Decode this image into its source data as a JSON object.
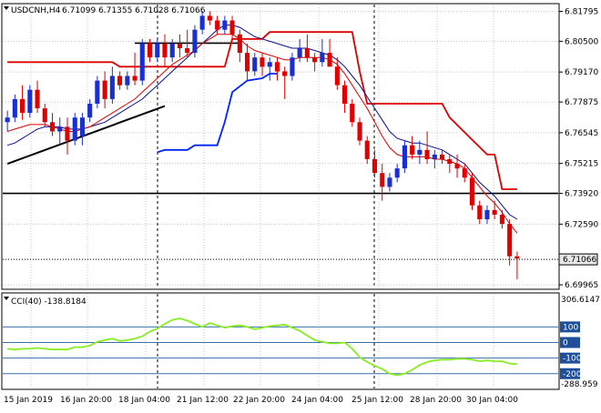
{
  "header": {
    "symbol": "USDCNH,H4",
    "ohlc": "6.71099 6.71355 6.71028 6.71066"
  },
  "indicator": {
    "label": "CCI(40) -138.8184",
    "max_label": "306.6147",
    "min_label": "-288.959",
    "levels": [
      "100",
      "0",
      "-100",
      "-200"
    ]
  },
  "colors": {
    "bull": "#1a2fd0",
    "bear": "#e00000",
    "ma_fast": "#e00000",
    "ma_slow": "#0a1090",
    "channel_upper": "#dd0000",
    "channel_lower": "#0022ff",
    "trendline": "#000000",
    "cci": "#88ee22",
    "level": "#3a6fa8",
    "badge_bg": "#e8e8e8"
  },
  "chart_data": {
    "type": "candlestick",
    "price_axis": {
      "ticks": [
        "6.81795",
        "6.80500",
        "6.79170",
        "6.77875",
        "6.76545",
        "6.75215",
        "6.73920",
        "6.72590",
        "6.69965"
      ],
      "range": [
        6.6985,
        6.8205
      ],
      "current": "6.71066"
    },
    "time_axis": {
      "ticks": [
        "15 Jan 2019",
        "16 Jan 20:00",
        "18 Jan 04:00",
        "21 Jan 12:00",
        "22 Jan 20:00",
        "24 Jan 04:00",
        "25 Jan 12:00",
        "28 Jan 20:00",
        "30 Jan 04:00"
      ]
    },
    "candles": [
      [
        6.77,
        6.775,
        6.766,
        6.772
      ],
      [
        6.772,
        6.782,
        6.77,
        6.78
      ],
      [
        6.78,
        6.786,
        6.771,
        6.774
      ],
      [
        6.774,
        6.786,
        6.772,
        6.784
      ],
      [
        6.784,
        6.788,
        6.774,
        6.776
      ],
      [
        6.776,
        6.778,
        6.768,
        6.77
      ],
      [
        6.77,
        6.774,
        6.764,
        6.766
      ],
      [
        6.766,
        6.772,
        6.76,
        6.768
      ],
      [
        6.768,
        6.772,
        6.756,
        6.762
      ],
      [
        6.762,
        6.774,
        6.76,
        6.772
      ],
      [
        6.764,
        6.774,
        6.76,
        6.772
      ],
      [
        6.772,
        6.78,
        6.77,
        6.778
      ],
      [
        6.778,
        6.79,
        6.776,
        6.788
      ],
      [
        6.788,
        6.792,
        6.776,
        6.78
      ],
      [
        6.78,
        6.794,
        6.778,
        6.79
      ],
      [
        6.79,
        6.792,
        6.784,
        6.786
      ],
      [
        6.786,
        6.792,
        6.784,
        6.79
      ],
      [
        6.79,
        6.8,
        6.786,
        6.788
      ],
      [
        6.788,
        6.806,
        6.786,
        6.804
      ],
      [
        6.804,
        6.806,
        6.796,
        6.798
      ],
      [
        6.798,
        6.806,
        6.796,
        6.804
      ],
      [
        6.804,
        6.808,
        6.794,
        6.798
      ],
      [
        6.798,
        6.806,
        6.796,
        6.804
      ],
      [
        6.804,
        6.808,
        6.798,
        6.802
      ],
      [
        6.802,
        6.81,
        6.798,
        6.8
      ],
      [
        6.8,
        6.812,
        6.798,
        6.81
      ],
      [
        6.81,
        6.818,
        6.808,
        6.816
      ],
      [
        6.816,
        6.818,
        6.812,
        6.814
      ],
      [
        6.814,
        6.816,
        6.808,
        6.81
      ],
      [
        6.81,
        6.816,
        6.808,
        6.814
      ],
      [
        6.814,
        6.816,
        6.806,
        6.808
      ],
      [
        6.808,
        6.81,
        6.796,
        6.8
      ],
      [
        6.8,
        6.804,
        6.788,
        6.792
      ],
      [
        6.792,
        6.8,
        6.79,
        6.798
      ],
      [
        6.798,
        6.8,
        6.79,
        6.794
      ],
      [
        6.794,
        6.798,
        6.788,
        6.796
      ],
      [
        6.796,
        6.798,
        6.788,
        6.792
      ],
      [
        6.792,
        6.794,
        6.78,
        6.79
      ],
      [
        6.79,
        6.8,
        6.788,
        6.798
      ],
      [
        6.798,
        6.806,
        6.796,
        6.802
      ],
      [
        6.802,
        6.808,
        6.796,
        6.798
      ],
      [
        6.798,
        6.8,
        6.792,
        6.796
      ],
      [
        6.796,
        6.806,
        6.794,
        6.8
      ],
      [
        6.8,
        6.806,
        6.794,
        6.794
      ],
      [
        6.794,
        6.798,
        6.784,
        6.786
      ],
      [
        6.786,
        6.788,
        6.774,
        6.778
      ],
      [
        6.778,
        6.78,
        6.768,
        6.77
      ],
      [
        6.77,
        6.772,
        6.76,
        6.762
      ],
      [
        6.762,
        6.764,
        6.752,
        6.754
      ],
      [
        6.754,
        6.758,
        6.746,
        6.748
      ],
      [
        6.748,
        6.752,
        6.736,
        6.742
      ],
      [
        6.742,
        6.748,
        6.74,
        6.746
      ],
      [
        6.746,
        6.752,
        6.744,
        6.75
      ],
      [
        6.75,
        6.762,
        6.748,
        6.76
      ],
      [
        6.76,
        6.764,
        6.754,
        6.756
      ],
      [
        6.756,
        6.762,
        6.752,
        6.758
      ],
      [
        6.758,
        6.766,
        6.752,
        6.754
      ],
      [
        6.754,
        6.758,
        6.75,
        6.756
      ],
      [
        6.756,
        6.758,
        6.752,
        6.754
      ],
      [
        6.754,
        6.756,
        6.748,
        6.752
      ],
      [
        6.752,
        6.756,
        6.746,
        6.75
      ],
      [
        6.75,
        6.752,
        6.744,
        6.746
      ],
      [
        6.746,
        6.748,
        6.732,
        6.734
      ],
      [
        6.734,
        6.736,
        6.726,
        6.728
      ],
      [
        6.728,
        6.734,
        6.726,
        6.732
      ],
      [
        6.732,
        6.736,
        6.728,
        6.73
      ],
      [
        6.73,
        6.732,
        6.724,
        6.726
      ],
      [
        6.726,
        6.728,
        6.708,
        6.712
      ],
      [
        6.712,
        6.714,
        6.702,
        6.711
      ]
    ],
    "ma_fast": [
      6.766,
      6.767,
      6.768,
      6.769,
      6.769,
      6.769,
      6.768,
      6.767,
      6.766,
      6.766,
      6.767,
      6.768,
      6.77,
      6.772,
      6.774,
      6.776,
      6.778,
      6.78,
      6.783,
      6.786,
      6.789,
      6.792,
      6.795,
      6.797,
      6.799,
      6.801,
      6.804,
      6.806,
      6.808,
      6.808,
      6.808,
      6.806,
      6.803,
      6.801,
      6.8,
      6.799,
      6.798,
      6.797,
      6.797,
      6.798,
      6.798,
      6.798,
      6.798,
      6.797,
      6.795,
      6.791,
      6.786,
      6.781,
      6.776,
      6.77,
      6.764,
      6.759,
      6.756,
      6.755,
      6.755,
      6.755,
      6.755,
      6.754,
      6.754,
      6.753,
      6.752,
      6.75,
      6.746,
      6.742,
      6.738,
      6.735,
      6.731,
      6.726,
      6.722
    ],
    "ma_slow": [
      6.76,
      6.761,
      6.763,
      6.765,
      6.767,
      6.768,
      6.768,
      6.768,
      6.767,
      6.767,
      6.767,
      6.768,
      6.769,
      6.77,
      6.772,
      6.774,
      6.776,
      6.778,
      6.78,
      6.783,
      6.786,
      6.789,
      6.792,
      6.795,
      6.798,
      6.801,
      6.804,
      6.807,
      6.81,
      6.812,
      6.812,
      6.811,
      6.809,
      6.807,
      6.806,
      6.805,
      6.804,
      6.803,
      6.802,
      6.802,
      6.802,
      6.801,
      6.8,
      6.799,
      6.797,
      6.794,
      6.79,
      6.786,
      6.781,
      6.776,
      6.771,
      6.766,
      6.763,
      6.762,
      6.761,
      6.761,
      6.76,
      6.759,
      6.758,
      6.756,
      6.754,
      6.752,
      6.748,
      6.744,
      6.741,
      6.738,
      6.734,
      6.73,
      6.728
    ],
    "channel_upper": [
      [
        0,
        6.796
      ],
      [
        14,
        6.796
      ],
      [
        15,
        6.794
      ],
      [
        29,
        6.794
      ],
      [
        30,
        6.806
      ],
      [
        34,
        6.806
      ],
      [
        35,
        6.809
      ],
      [
        46,
        6.809
      ],
      [
        47,
        6.792
      ],
      [
        48,
        6.778
      ],
      [
        58,
        6.778
      ],
      [
        59,
        6.772
      ],
      [
        64,
        6.756
      ],
      [
        65,
        6.756
      ],
      [
        66,
        6.741
      ],
      [
        68,
        6.741
      ]
    ],
    "channel_lower": [
      [
        20,
        6.757
      ],
      [
        21,
        6.758
      ],
      [
        24,
        6.758
      ],
      [
        25,
        6.76
      ],
      [
        28,
        6.76
      ],
      [
        29,
        6.77
      ],
      [
        30,
        6.783
      ],
      [
        32,
        6.788
      ],
      [
        34,
        6.789
      ],
      [
        35,
        6.791
      ],
      [
        36,
        6.791
      ]
    ],
    "horizontal_levels": [
      {
        "price": 6.7392,
        "from": 0,
        "to": 68
      },
      {
        "price": 6.8042,
        "from": 17,
        "to": 31
      }
    ],
    "trendlines": [
      {
        "from": [
          0,
          6.752
        ],
        "to": [
          21,
          6.777
        ]
      }
    ],
    "cci": [
      -40,
      -45,
      -40,
      -40,
      -35,
      -40,
      -45,
      -45,
      -45,
      -30,
      -30,
      -20,
      5,
      15,
      25,
      10,
      15,
      25,
      40,
      70,
      90,
      120,
      145,
      155,
      140,
      120,
      100,
      125,
      110,
      95,
      105,
      110,
      100,
      85,
      95,
      105,
      110,
      115,
      95,
      75,
      45,
      15,
      5,
      -5,
      -5,
      0,
      -40,
      -95,
      -125,
      -150,
      -170,
      -200,
      -210,
      -200,
      -175,
      -145,
      -125,
      -115,
      -110,
      -110,
      -105,
      -105,
      -110,
      -120,
      -115,
      -120,
      -120,
      -135,
      -139
    ],
    "cci_range": [
      -288.959,
      306.6147
    ]
  }
}
